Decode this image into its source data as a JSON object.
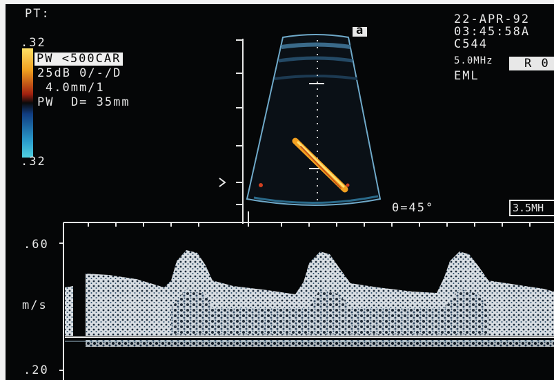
{
  "header": {
    "patient_label": "PT:",
    "date": "22-APR-92",
    "time": "03:45:58A",
    "probe": "C544",
    "frequency": "5.0MHz",
    "operator": "EML",
    "side_badge": "R 0",
    "sector_marker": "a"
  },
  "color_settings": {
    "scale_top": ".32",
    "scale_bottom": ".32",
    "mode": "PW <500CAR",
    "gain_line": "25dB 0/-/D",
    "sample_line": "4.0mm/1",
    "depth_line": "PW  D= 35mm"
  },
  "doppler": {
    "angle": "θ=45°",
    "doppler_freq": "3.5MH",
    "axis_top": ".60",
    "axis_unit": "m/s",
    "axis_bottom": ".20",
    "range_m_s": [
      0.2,
      0.6
    ],
    "peak_count": 3
  },
  "colors": {
    "background": "#050607",
    "text": "#e8e8e8",
    "sector_outline": "#6fa9c9",
    "color_flow_warm": "#f2a020",
    "color_flow_cool": "#2aa6c8"
  }
}
